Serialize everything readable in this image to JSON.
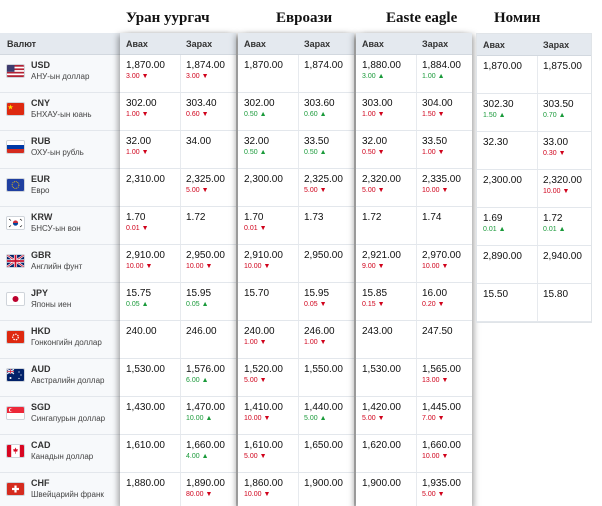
{
  "banks": [
    {
      "name": "Уран уургач"
    },
    {
      "name": "Евроази"
    },
    {
      "name": "Easte eagle"
    },
    {
      "name": "Номин"
    }
  ],
  "labels": {
    "currency": "Валют",
    "buy": "Авах",
    "sell": "Зарах"
  },
  "currencies": [
    {
      "code": "USD",
      "name": "АНУ-ын доллар",
      "flag": "us-flag-icon"
    },
    {
      "code": "CNY",
      "name": "БНХАУ-ын юань",
      "flag": "cn-flag-icon"
    },
    {
      "code": "RUB",
      "name": "ОХУ-ын рубль",
      "flag": "ru-flag-icon"
    },
    {
      "code": "EUR",
      "name": "Евро",
      "flag": "eu-flag-icon"
    },
    {
      "code": "KRW",
      "name": "БНСУ-ын вон",
      "flag": "kr-flag-icon"
    },
    {
      "code": "GBR",
      "name": "Английн фунт",
      "flag": "gb-flag-icon"
    },
    {
      "code": "JPY",
      "name": "Японы иен",
      "flag": "jp-flag-icon"
    },
    {
      "code": "HKD",
      "name": "Гонконгийн доллар",
      "flag": "hk-flag-icon"
    },
    {
      "code": "AUD",
      "name": "Австралийн доллар",
      "flag": "au-flag-icon"
    },
    {
      "code": "SGD",
      "name": "Сингапурын доллар",
      "flag": "sg-flag-icon"
    },
    {
      "code": "CAD",
      "name": "Канадын доллар",
      "flag": "ca-flag-icon"
    },
    {
      "code": "CHF",
      "name": "Швейцарийн франк",
      "flag": "ch-flag-icon"
    }
  ],
  "rates": [
    [
      {
        "buy": "1,870.00",
        "buy_chg": "3.00",
        "buy_dir": "down",
        "sell": "1,874.00",
        "sell_chg": "3.00",
        "sell_dir": "down"
      },
      {
        "buy": "302.00",
        "buy_chg": "1.00",
        "buy_dir": "down",
        "sell": "303.40",
        "sell_chg": "0.60",
        "sell_dir": "down"
      },
      {
        "buy": "32.00",
        "buy_chg": "1.00",
        "buy_dir": "down",
        "sell": "34.00",
        "sell_chg": "",
        "sell_dir": ""
      },
      {
        "buy": "2,310.00",
        "buy_chg": "",
        "buy_dir": "",
        "sell": "2,325.00",
        "sell_chg": "5.00",
        "sell_dir": "down"
      },
      {
        "buy": "1.70",
        "buy_chg": "0.01",
        "buy_dir": "down",
        "sell": "1.72",
        "sell_chg": "",
        "sell_dir": ""
      },
      {
        "buy": "2,910.00",
        "buy_chg": "10.00",
        "buy_dir": "down",
        "sell": "2,950.00",
        "sell_chg": "10.00",
        "sell_dir": "down"
      },
      {
        "buy": "15.75",
        "buy_chg": "0.05",
        "buy_dir": "up",
        "sell": "15.95",
        "sell_chg": "0.05",
        "sell_dir": "up"
      },
      {
        "buy": "240.00",
        "buy_chg": "",
        "buy_dir": "",
        "sell": "246.00",
        "sell_chg": "",
        "sell_dir": ""
      },
      {
        "buy": "1,530.00",
        "buy_chg": "",
        "buy_dir": "",
        "sell": "1,576.00",
        "sell_chg": "6.00",
        "sell_dir": "up"
      },
      {
        "buy": "1,430.00",
        "buy_chg": "",
        "buy_dir": "",
        "sell": "1,470.00",
        "sell_chg": "10.00",
        "sell_dir": "up"
      },
      {
        "buy": "1,610.00",
        "buy_chg": "",
        "buy_dir": "",
        "sell": "1,660.00",
        "sell_chg": "4.00",
        "sell_dir": "up"
      },
      {
        "buy": "1,880.00",
        "buy_chg": "",
        "buy_dir": "",
        "sell": "1,890.00",
        "sell_chg": "80.00",
        "sell_dir": "down"
      }
    ],
    [
      {
        "buy": "1,870.00",
        "buy_chg": "",
        "buy_dir": "",
        "sell": "1,874.00",
        "sell_chg": "",
        "sell_dir": ""
      },
      {
        "buy": "302.00",
        "buy_chg": "0.50",
        "buy_dir": "up",
        "sell": "303.60",
        "sell_chg": "0.60",
        "sell_dir": "up"
      },
      {
        "buy": "32.00",
        "buy_chg": "0.50",
        "buy_dir": "up",
        "sell": "33.50",
        "sell_chg": "0.50",
        "sell_dir": "up"
      },
      {
        "buy": "2,300.00",
        "buy_chg": "",
        "buy_dir": "",
        "sell": "2,325.00",
        "sell_chg": "5.00",
        "sell_dir": "down"
      },
      {
        "buy": "1.70",
        "buy_chg": "0.01",
        "buy_dir": "down",
        "sell": "1.73",
        "sell_chg": "",
        "sell_dir": ""
      },
      {
        "buy": "2,910.00",
        "buy_chg": "10.00",
        "buy_dir": "down",
        "sell": "2,950.00",
        "sell_chg": "",
        "sell_dir": ""
      },
      {
        "buy": "15.70",
        "buy_chg": "",
        "buy_dir": "",
        "sell": "15.95",
        "sell_chg": "0.05",
        "sell_dir": "down"
      },
      {
        "buy": "240.00",
        "buy_chg": "1.00",
        "buy_dir": "down",
        "sell": "246.00",
        "sell_chg": "1.00",
        "sell_dir": "down"
      },
      {
        "buy": "1,520.00",
        "buy_chg": "5.00",
        "buy_dir": "down",
        "sell": "1,550.00",
        "sell_chg": "",
        "sell_dir": ""
      },
      {
        "buy": "1,410.00",
        "buy_chg": "10.00",
        "buy_dir": "down",
        "sell": "1,440.00",
        "sell_chg": "5.00",
        "sell_dir": "up"
      },
      {
        "buy": "1,610.00",
        "buy_chg": "5.00",
        "buy_dir": "down",
        "sell": "1,650.00",
        "sell_chg": "",
        "sell_dir": ""
      },
      {
        "buy": "1,860.00",
        "buy_chg": "10.00",
        "buy_dir": "down",
        "sell": "1,900.00",
        "sell_chg": "",
        "sell_dir": ""
      }
    ],
    [
      {
        "buy": "1,880.00",
        "buy_chg": "3.00",
        "buy_dir": "up",
        "sell": "1,884.00",
        "sell_chg": "1.00",
        "sell_dir": "up"
      },
      {
        "buy": "303.00",
        "buy_chg": "1.00",
        "buy_dir": "down",
        "sell": "304.00",
        "sell_chg": "1.50",
        "sell_dir": "down"
      },
      {
        "buy": "32.00",
        "buy_chg": "0.50",
        "buy_dir": "down",
        "sell": "33.50",
        "sell_chg": "1.00",
        "sell_dir": "down"
      },
      {
        "buy": "2,320.00",
        "buy_chg": "5.00",
        "buy_dir": "down",
        "sell": "2,335.00",
        "sell_chg": "10.00",
        "sell_dir": "down"
      },
      {
        "buy": "1.72",
        "buy_chg": "",
        "buy_dir": "",
        "sell": "1.74",
        "sell_chg": "",
        "sell_dir": ""
      },
      {
        "buy": "2,921.00",
        "buy_chg": "9.00",
        "buy_dir": "down",
        "sell": "2,970.00",
        "sell_chg": "10.00",
        "sell_dir": "down"
      },
      {
        "buy": "15.85",
        "buy_chg": "0.15",
        "buy_dir": "down",
        "sell": "16.00",
        "sell_chg": "0.20",
        "sell_dir": "down"
      },
      {
        "buy": "243.00",
        "buy_chg": "",
        "buy_dir": "",
        "sell": "247.50",
        "sell_chg": "",
        "sell_dir": ""
      },
      {
        "buy": "1,530.00",
        "buy_chg": "",
        "buy_dir": "",
        "sell": "1,565.00",
        "sell_chg": "13.00",
        "sell_dir": "down"
      },
      {
        "buy": "1,420.00",
        "buy_chg": "5.00",
        "buy_dir": "down",
        "sell": "1,445.00",
        "sell_chg": "7.00",
        "sell_dir": "down"
      },
      {
        "buy": "1,620.00",
        "buy_chg": "",
        "buy_dir": "",
        "sell": "1,660.00",
        "sell_chg": "10.00",
        "sell_dir": "down"
      },
      {
        "buy": "1,900.00",
        "buy_chg": "",
        "buy_dir": "",
        "sell": "1,935.00",
        "sell_chg": "5.00",
        "sell_dir": "down"
      }
    ],
    [
      {
        "buy": "1,870.00",
        "buy_chg": "",
        "buy_dir": "",
        "sell": "1,875.00",
        "sell_chg": "",
        "sell_dir": ""
      },
      {
        "buy": "302.30",
        "buy_chg": "1.50",
        "buy_dir": "up",
        "sell": "303.50",
        "sell_chg": "0.70",
        "sell_dir": "up"
      },
      {
        "buy": "32.30",
        "buy_chg": "",
        "buy_dir": "",
        "sell": "33.00",
        "sell_chg": "0.30",
        "sell_dir": "down"
      },
      {
        "buy": "2,300.00",
        "buy_chg": "",
        "buy_dir": "",
        "sell": "2,320.00",
        "sell_chg": "10.00",
        "sell_dir": "down"
      },
      {
        "buy": "1.69",
        "buy_chg": "0.01",
        "buy_dir": "up",
        "sell": "1.72",
        "sell_chg": "0.01",
        "sell_dir": "up"
      },
      {
        "buy": "2,890.00",
        "buy_chg": "",
        "buy_dir": "",
        "sell": "2,940.00",
        "sell_chg": "",
        "sell_dir": ""
      },
      {
        "buy": "15.50",
        "buy_chg": "",
        "buy_dir": "",
        "sell": "15.80",
        "sell_chg": "",
        "sell_dir": ""
      }
    ]
  ],
  "colors": {
    "down": "#d0021b",
    "up": "#1a9a3a",
    "header_bg": "#e4e9ef"
  },
  "arrows": {
    "down": "▼",
    "up": "▲"
  }
}
